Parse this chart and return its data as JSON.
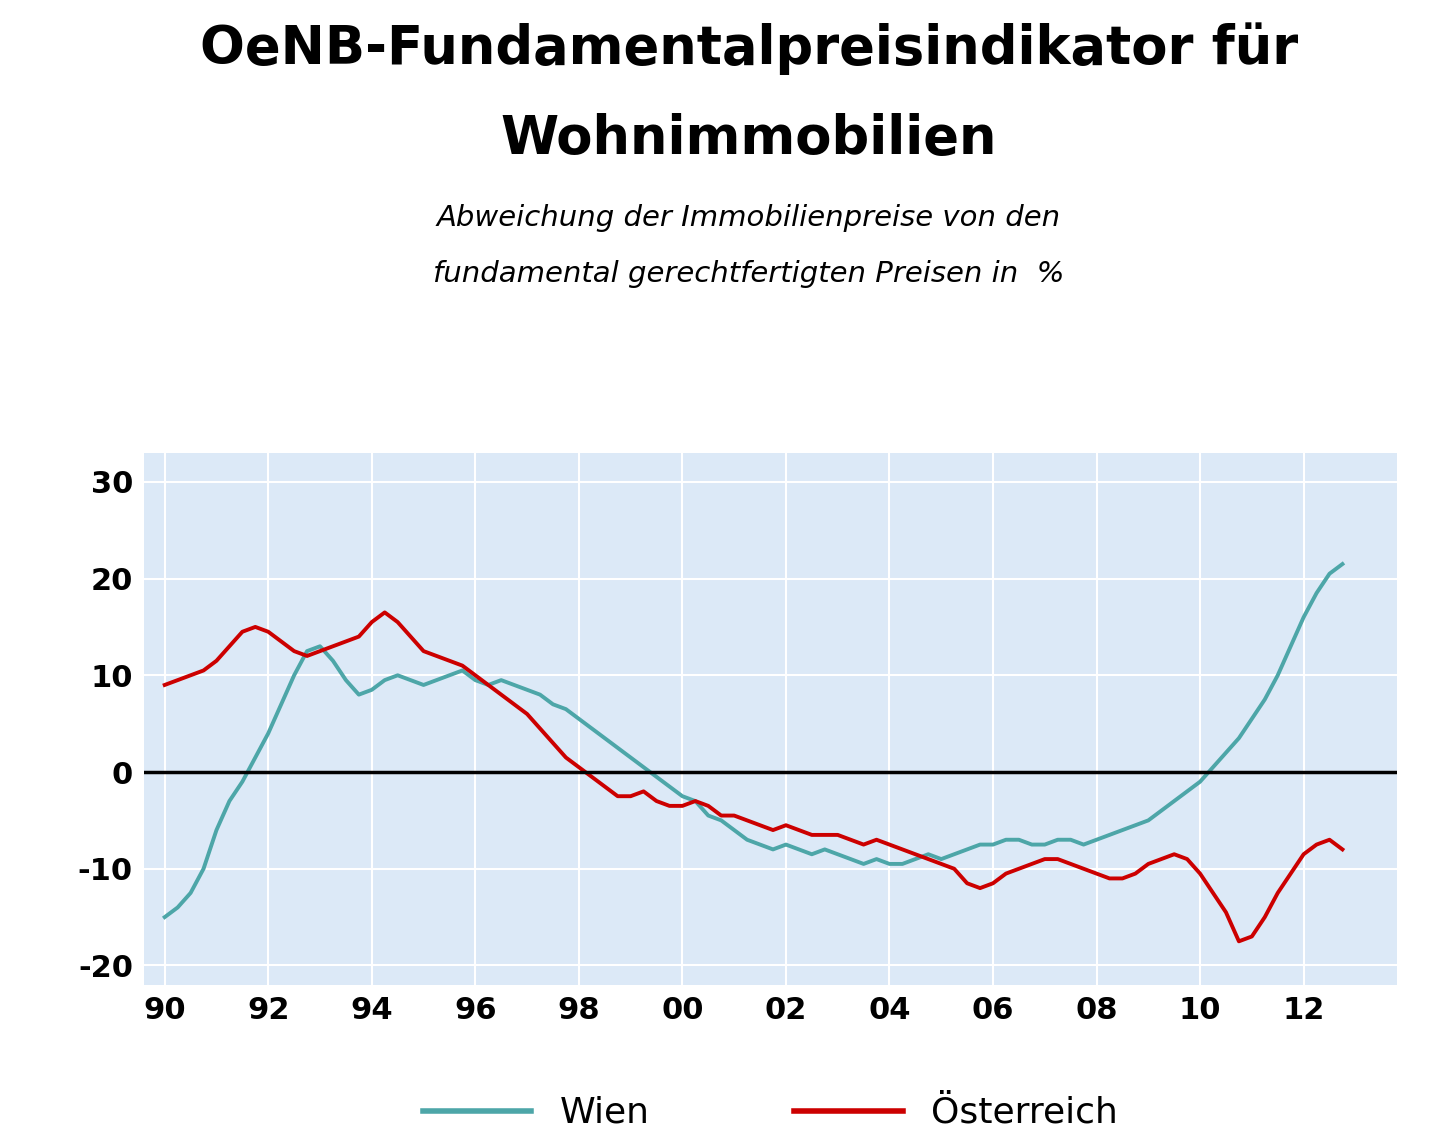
{
  "title_line1": "OeNB-Fundamentalpreisindikator für",
  "title_line2": "Wohnimmobilien",
  "subtitle_line1": "Abweichung der Immobilienpreise von den",
  "subtitle_line2": "fundamental gerechtfertigten Preisen in  %",
  "fig_bg_color": "#ffffff",
  "plot_bg_color": "#dce9f7",
  "wien_color": "#4da6a8",
  "oesterreich_color": "#cc0000",
  "zero_line_color": "#000000",
  "grid_color": "#ffffff",
  "ylim": [
    -22,
    33
  ],
  "yticks": [
    -20,
    -10,
    0,
    10,
    20,
    30
  ],
  "xticks": [
    1990,
    1992,
    1994,
    1996,
    1998,
    2000,
    2002,
    2004,
    2006,
    2008,
    2010,
    2012
  ],
  "xticklabels": [
    "90",
    "92",
    "94",
    "96",
    "98",
    "00",
    "02",
    "04",
    "06",
    "08",
    "10",
    "12"
  ],
  "xlim": [
    1989.6,
    2013.8
  ],
  "legend_wien": "Wien",
  "legend_oesterreich": "Österreich",
  "wien": [
    -15.0,
    -14.0,
    -12.5,
    -10.0,
    -6.0,
    -3.0,
    -1.0,
    1.5,
    4.0,
    7.0,
    10.0,
    12.5,
    13.0,
    11.5,
    9.5,
    8.0,
    8.5,
    9.5,
    10.0,
    9.5,
    9.0,
    9.5,
    10.0,
    10.5,
    9.5,
    9.0,
    9.5,
    9.0,
    8.5,
    8.0,
    7.0,
    6.5,
    5.5,
    4.5,
    3.5,
    2.5,
    1.5,
    0.5,
    -0.5,
    -1.5,
    -2.5,
    -3.0,
    -4.5,
    -5.0,
    -6.0,
    -7.0,
    -7.5,
    -8.0,
    -7.5,
    -8.0,
    -8.5,
    -8.0,
    -8.5,
    -9.0,
    -9.5,
    -9.0,
    -9.5,
    -9.5,
    -9.0,
    -8.5,
    -9.0,
    -8.5,
    -8.0,
    -7.5,
    -7.5,
    -7.0,
    -7.0,
    -7.5,
    -7.5,
    -7.0,
    -7.0,
    -7.5,
    -7.0,
    -6.5,
    -6.0,
    -5.5,
    -5.0,
    -4.0,
    -3.0,
    -2.0,
    -1.0,
    0.5,
    2.0,
    3.5,
    5.5,
    7.5,
    10.0,
    13.0,
    16.0,
    18.5,
    20.5,
    21.5
  ],
  "oesterreich": [
    9.0,
    9.5,
    10.0,
    10.5,
    11.5,
    13.0,
    14.5,
    15.0,
    14.5,
    13.5,
    12.5,
    12.0,
    12.5,
    13.0,
    13.5,
    14.0,
    15.5,
    16.5,
    15.5,
    14.0,
    12.5,
    12.0,
    11.5,
    11.0,
    10.0,
    9.0,
    8.0,
    7.0,
    6.0,
    4.5,
    3.0,
    1.5,
    0.5,
    -0.5,
    -1.5,
    -2.5,
    -2.5,
    -2.0,
    -3.0,
    -3.5,
    -3.5,
    -3.0,
    -3.5,
    -4.5,
    -4.5,
    -5.0,
    -5.5,
    -6.0,
    -5.5,
    -6.0,
    -6.5,
    -6.5,
    -6.5,
    -7.0,
    -7.5,
    -7.0,
    -7.5,
    -8.0,
    -8.5,
    -9.0,
    -9.5,
    -10.0,
    -11.5,
    -12.0,
    -11.5,
    -10.5,
    -10.0,
    -9.5,
    -9.0,
    -9.0,
    -9.5,
    -10.0,
    -10.5,
    -11.0,
    -11.0,
    -10.5,
    -9.5,
    -9.0,
    -8.5,
    -9.0,
    -10.5,
    -12.5,
    -14.5,
    -17.5,
    -17.0,
    -15.0,
    -12.5,
    -10.5,
    -8.5,
    -7.5,
    -7.0,
    -8.0
  ]
}
